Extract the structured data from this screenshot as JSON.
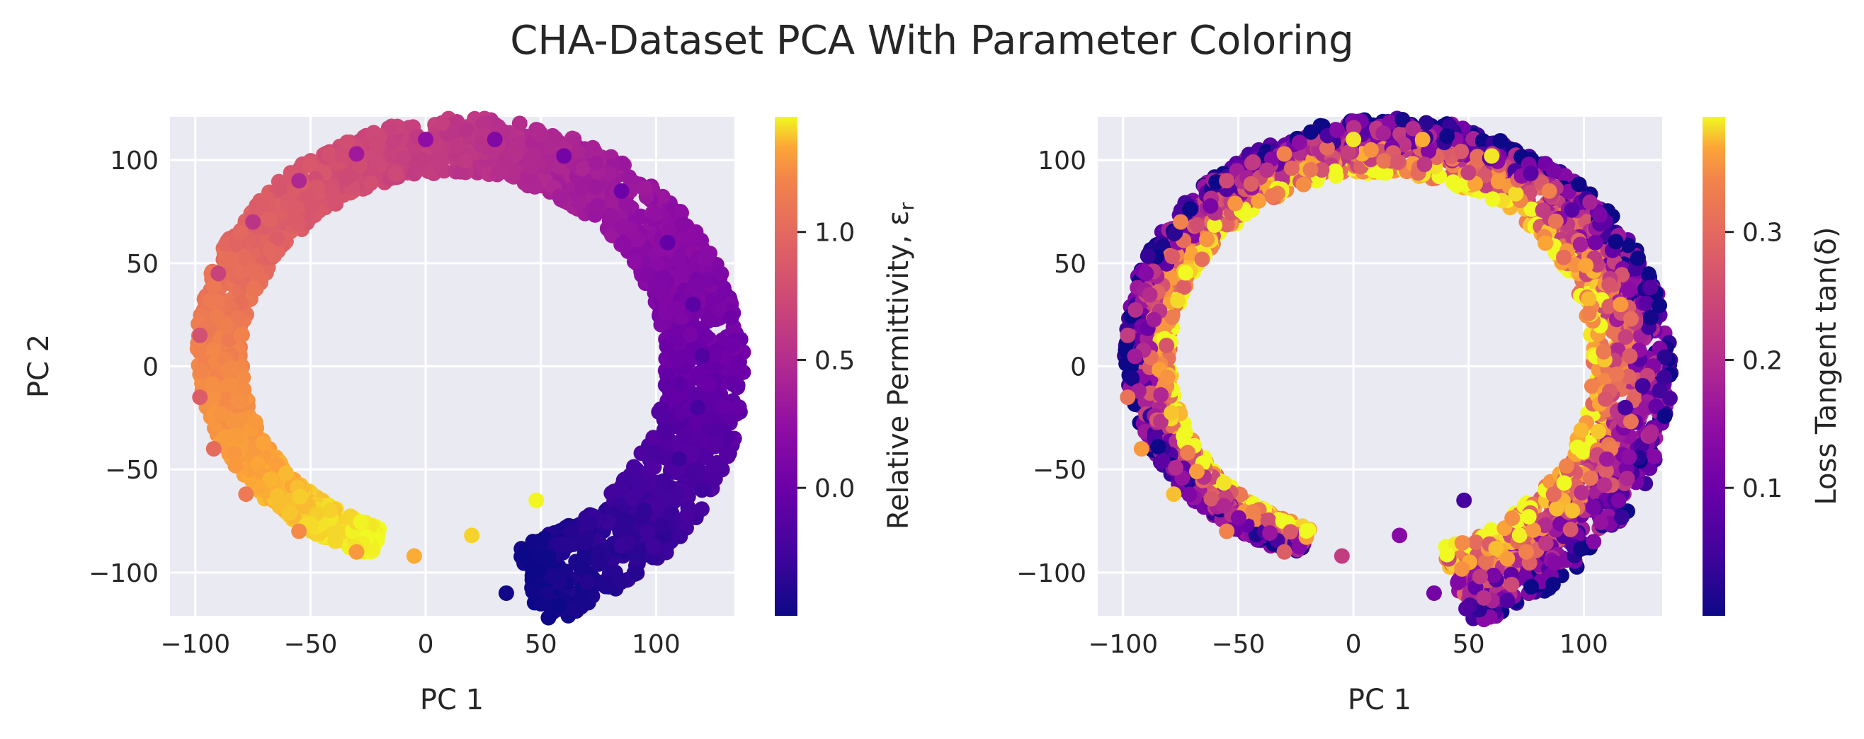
{
  "figure": {
    "title": "CHA-Dataset PCA With Parameter Coloring",
    "background": "#ffffff",
    "axes_face": "#eaeaf2",
    "grid_color": "#ffffff",
    "colormap": "plasma"
  },
  "chart_data": [
    {
      "type": "scatter",
      "xlabel": "PC 1",
      "ylabel": "PC 2",
      "xlim": [
        -111,
        134
      ],
      "ylim": [
        -121,
        121
      ],
      "xticks": [
        "−100",
        "−50",
        "0",
        "50",
        "100"
      ],
      "yticks": [
        "−100",
        "−50",
        "0",
        "50",
        "100"
      ],
      "grid": true,
      "color_variable": "permittivity",
      "colorbar": {
        "label": "Relative Permittivity, ε_r",
        "range": [
          -0.5,
          1.45
        ],
        "ticks": [
          "0.0",
          "0.5",
          "1.0"
        ]
      },
      "point_pattern": "smooth along the ring: −0.5 at the inner end near (35, −110), rising to 1.45 at the tip near (48, −65)",
      "points": [
        {
          "x": 35,
          "y": -110,
          "c": -0.48
        },
        {
          "x": 55,
          "y": -102,
          "c": -0.44
        },
        {
          "x": 75,
          "y": -90,
          "c": -0.4
        },
        {
          "x": 95,
          "y": -70,
          "c": -0.35
        },
        {
          "x": 110,
          "y": -45,
          "c": -0.3
        },
        {
          "x": 118,
          "y": -20,
          "c": -0.25
        },
        {
          "x": 120,
          "y": 5,
          "c": -0.2
        },
        {
          "x": 116,
          "y": 30,
          "c": -0.15
        },
        {
          "x": 105,
          "y": 60,
          "c": -0.1
        },
        {
          "x": 85,
          "y": 85,
          "c": -0.05
        },
        {
          "x": 60,
          "y": 102,
          "c": 0.0
        },
        {
          "x": 30,
          "y": 110,
          "c": 0.07
        },
        {
          "x": 0,
          "y": 110,
          "c": 0.15
        },
        {
          "x": -30,
          "y": 103,
          "c": 0.25
        },
        {
          "x": -55,
          "y": 90,
          "c": 0.35
        },
        {
          "x": -75,
          "y": 70,
          "c": 0.45
        },
        {
          "x": -90,
          "y": 45,
          "c": 0.55
        },
        {
          "x": -98,
          "y": 15,
          "c": 0.65
        },
        {
          "x": -98,
          "y": -15,
          "c": 0.75
        },
        {
          "x": -92,
          "y": -40,
          "c": 0.85
        },
        {
          "x": -78,
          "y": -62,
          "c": 0.95
        },
        {
          "x": -55,
          "y": -80,
          "c": 1.05
        },
        {
          "x": -30,
          "y": -90,
          "c": 1.15
        },
        {
          "x": -5,
          "y": -92,
          "c": 1.25
        },
        {
          "x": 20,
          "y": -82,
          "c": 1.35
        },
        {
          "x": 48,
          "y": -65,
          "c": 1.44
        }
      ]
    },
    {
      "type": "scatter",
      "xlabel": "PC 1",
      "ylabel": "",
      "xlim": [
        -111,
        134
      ],
      "ylim": [
        -121,
        121
      ],
      "xticks": [
        "−100",
        "−50",
        "0",
        "50",
        "100"
      ],
      "yticks": [
        "−100",
        "−50",
        "0",
        "50",
        "100"
      ],
      "grid": true,
      "color_variable": "loss tangent",
      "colorbar": {
        "label": "Loss Tangent tan(δ)",
        "range": [
          0.0,
          0.39
        ],
        "ticks": [
          "0.1",
          "0.2",
          "0.3"
        ]
      },
      "point_pattern": "same ring; low values on the outer edge, high values on the inner edge, noisy",
      "points": [
        {
          "x": 35,
          "y": -110,
          "c": 0.1
        },
        {
          "x": 55,
          "y": -102,
          "c": 0.2
        },
        {
          "x": 75,
          "y": -90,
          "c": 0.3
        },
        {
          "x": 95,
          "y": -70,
          "c": 0.36
        },
        {
          "x": 110,
          "y": -45,
          "c": 0.15
        },
        {
          "x": 118,
          "y": -20,
          "c": 0.05
        },
        {
          "x": 120,
          "y": 5,
          "c": 0.25
        },
        {
          "x": 116,
          "y": 30,
          "c": 0.33
        },
        {
          "x": 105,
          "y": 60,
          "c": 0.1
        },
        {
          "x": 85,
          "y": 85,
          "c": 0.3
        },
        {
          "x": 60,
          "y": 102,
          "c": 0.38
        },
        {
          "x": 30,
          "y": 110,
          "c": 0.35
        },
        {
          "x": 0,
          "y": 110,
          "c": 0.38
        },
        {
          "x": -30,
          "y": 103,
          "c": 0.3
        },
        {
          "x": -55,
          "y": 90,
          "c": 0.22
        },
        {
          "x": -75,
          "y": 70,
          "c": 0.3
        },
        {
          "x": -90,
          "y": 45,
          "c": 0.12
        },
        {
          "x": -98,
          "y": 15,
          "c": 0.2
        },
        {
          "x": -98,
          "y": -15,
          "c": 0.28
        },
        {
          "x": -92,
          "y": -40,
          "c": 0.33
        },
        {
          "x": -78,
          "y": -62,
          "c": 0.36
        },
        {
          "x": -55,
          "y": -80,
          "c": 0.3
        },
        {
          "x": -30,
          "y": -90,
          "c": 0.25
        },
        {
          "x": -5,
          "y": -92,
          "c": 0.2
        },
        {
          "x": 20,
          "y": -82,
          "c": 0.12
        },
        {
          "x": 48,
          "y": -65,
          "c": 0.05
        }
      ]
    }
  ]
}
